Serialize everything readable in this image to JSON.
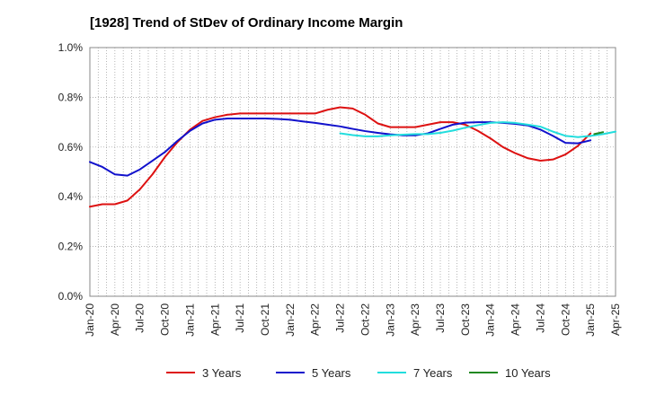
{
  "chart_data": {
    "type": "line",
    "title": "[1928]  Trend of StDev of Ordinary Income Margin",
    "xlabel": "",
    "ylabel": "",
    "x_labels": [
      "Jan-20",
      "Apr-20",
      "Jul-20",
      "Oct-20",
      "Jan-21",
      "Apr-21",
      "Jul-21",
      "Oct-21",
      "Jan-22",
      "Apr-22",
      "Jul-22",
      "Oct-22",
      "Jan-23",
      "Apr-23",
      "Jul-23",
      "Oct-23",
      "Jan-24",
      "Apr-24",
      "Jul-24",
      "Oct-24",
      "Jan-25",
      "Apr-25"
    ],
    "y_ticks": [
      "0.0%",
      "0.2%",
      "0.4%",
      "0.6%",
      "0.8%",
      "1.0%"
    ],
    "ylim": [
      0,
      1.0
    ],
    "y_unit": "%",
    "grid": true,
    "legend_position": "bottom",
    "series": [
      {
        "name": "3 Years",
        "color": "#dd1111",
        "points": [
          [
            0,
            0.36
          ],
          [
            1,
            0.37
          ],
          [
            2,
            0.37
          ],
          [
            3,
            0.385
          ],
          [
            4,
            0.43
          ],
          [
            5,
            0.49
          ],
          [
            6,
            0.56
          ],
          [
            7,
            0.62
          ],
          [
            8,
            0.67
          ],
          [
            9,
            0.705
          ],
          [
            10,
            0.72
          ],
          [
            11,
            0.73
          ],
          [
            12,
            0.735
          ],
          [
            13,
            0.735
          ],
          [
            14,
            0.735
          ],
          [
            15,
            0.735
          ],
          [
            16,
            0.735
          ],
          [
            17,
            0.735
          ],
          [
            18,
            0.735
          ],
          [
            19,
            0.75
          ],
          [
            20,
            0.76
          ],
          [
            21,
            0.755
          ],
          [
            22,
            0.73
          ],
          [
            23,
            0.695
          ],
          [
            24,
            0.68
          ],
          [
            25,
            0.68
          ],
          [
            26,
            0.68
          ],
          [
            27,
            0.69
          ],
          [
            28,
            0.7
          ],
          [
            29,
            0.7
          ],
          [
            30,
            0.69
          ],
          [
            31,
            0.665
          ],
          [
            32,
            0.635
          ],
          [
            33,
            0.6
          ],
          [
            34,
            0.575
          ],
          [
            35,
            0.555
          ],
          [
            36,
            0.545
          ],
          [
            37,
            0.55
          ],
          [
            38,
            0.57
          ],
          [
            39,
            0.605
          ],
          [
            40,
            0.655
          ]
        ]
      },
      {
        "name": "5 Years",
        "color": "#1111cc",
        "points": [
          [
            0,
            0.54
          ],
          [
            1,
            0.52
          ],
          [
            2,
            0.49
          ],
          [
            3,
            0.485
          ],
          [
            4,
            0.51
          ],
          [
            5,
            0.545
          ],
          [
            6,
            0.58
          ],
          [
            7,
            0.625
          ],
          [
            8,
            0.665
          ],
          [
            9,
            0.695
          ],
          [
            10,
            0.71
          ],
          [
            11,
            0.715
          ],
          [
            12,
            0.715
          ],
          [
            13,
            0.715
          ],
          [
            14,
            0.715
          ],
          [
            15,
            0.713
          ],
          [
            16,
            0.71
          ],
          [
            17,
            0.703
          ],
          [
            18,
            0.697
          ],
          [
            19,
            0.69
          ],
          [
            20,
            0.683
          ],
          [
            21,
            0.673
          ],
          [
            22,
            0.664
          ],
          [
            23,
            0.657
          ],
          [
            24,
            0.651
          ],
          [
            25,
            0.647
          ],
          [
            26,
            0.647
          ],
          [
            27,
            0.655
          ],
          [
            28,
            0.673
          ],
          [
            29,
            0.69
          ],
          [
            30,
            0.698
          ],
          [
            31,
            0.7
          ],
          [
            32,
            0.7
          ],
          [
            33,
            0.697
          ],
          [
            34,
            0.693
          ],
          [
            35,
            0.687
          ],
          [
            36,
            0.67
          ],
          [
            37,
            0.645
          ],
          [
            38,
            0.617
          ],
          [
            39,
            0.615
          ],
          [
            40,
            0.627
          ]
        ]
      },
      {
        "name": "7 Years",
        "color": "#22dddd",
        "points": [
          [
            20,
            0.655
          ],
          [
            21,
            0.648
          ],
          [
            22,
            0.643
          ],
          [
            23,
            0.643
          ],
          [
            24,
            0.647
          ],
          [
            25,
            0.65
          ],
          [
            26,
            0.652
          ],
          [
            27,
            0.652
          ],
          [
            28,
            0.657
          ],
          [
            29,
            0.666
          ],
          [
            30,
            0.678
          ],
          [
            31,
            0.688
          ],
          [
            32,
            0.697
          ],
          [
            33,
            0.7
          ],
          [
            34,
            0.697
          ],
          [
            35,
            0.69
          ],
          [
            36,
            0.682
          ],
          [
            37,
            0.662
          ],
          [
            38,
            0.645
          ],
          [
            39,
            0.64
          ],
          [
            40,
            0.645
          ],
          [
            41,
            0.652
          ],
          [
            42,
            0.662
          ]
        ]
      },
      {
        "name": "10 Years",
        "color": "#228822",
        "points": [
          [
            40.3,
            0.652
          ],
          [
            41,
            0.66
          ]
        ]
      }
    ]
  }
}
